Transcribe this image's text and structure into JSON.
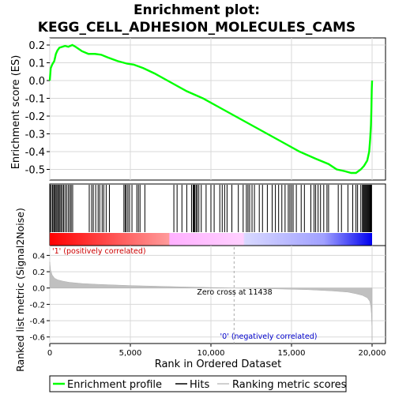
{
  "title_line1": "Enrichment plot:",
  "title_line2": "KEGG_CELL_ADHESION_MOLECULES_CAMS",
  "chart_data": [
    {
      "type": "line",
      "panel": "enrichment",
      "ylabel": "Enrichment score (ES)",
      "yticks": [
        "0.2",
        "0.1",
        "0.0",
        "-0.1",
        "-0.2",
        "-0.3",
        "-0.4",
        "-0.5"
      ],
      "ytick_values": [
        0.2,
        0.1,
        0.0,
        -0.1,
        -0.2,
        -0.3,
        -0.4,
        -0.5
      ],
      "ylim": [
        -0.56,
        0.24
      ],
      "xlim": [
        0,
        20000
      ],
      "grid": true,
      "series": [
        {
          "name": "Enrichment profile",
          "color": "#00ff00",
          "x": [
            0,
            60,
            150,
            280,
            380,
            480,
            600,
            780,
            950,
            1150,
            1400,
            1600,
            2000,
            2400,
            2800,
            3200,
            3600,
            4200,
            4800,
            5200,
            5800,
            6500,
            7500,
            8500,
            9500,
            10500,
            11500,
            12500,
            13500,
            14500,
            15500,
            16500,
            17300,
            17800,
            18300,
            18700,
            19000,
            19300,
            19500,
            19700,
            19820,
            19880,
            19930,
            19960,
            19980,
            20000
          ],
          "y": [
            0.0,
            0.07,
            0.09,
            0.11,
            0.15,
            0.17,
            0.185,
            0.19,
            0.195,
            0.19,
            0.2,
            0.19,
            0.165,
            0.15,
            0.15,
            0.145,
            0.13,
            0.11,
            0.095,
            0.09,
            0.07,
            0.04,
            -0.01,
            -0.06,
            -0.1,
            -0.15,
            -0.2,
            -0.25,
            -0.3,
            -0.35,
            -0.4,
            -0.44,
            -0.47,
            -0.5,
            -0.51,
            -0.52,
            -0.52,
            -0.5,
            -0.48,
            -0.45,
            -0.4,
            -0.33,
            -0.25,
            -0.15,
            -0.05,
            0.0
          ]
        }
      ]
    },
    {
      "type": "scatter",
      "panel": "hits",
      "series": [
        {
          "name": "Hits",
          "color": "#000000",
          "x": [
            20,
            90,
            170,
            240,
            300,
            350,
            430,
            490,
            560,
            630,
            700,
            780,
            860,
            950,
            1050,
            1150,
            1250,
            1330,
            1420,
            2450,
            2600,
            2700,
            2850,
            3000,
            3100,
            3250,
            3350,
            3500,
            3700,
            4600,
            4680,
            4750,
            4850,
            4950,
            5100,
            5400,
            5500,
            5600,
            5900,
            7700,
            7900,
            8200,
            8500,
            8800,
            8900,
            8950,
            9000,
            9080,
            9150,
            9250,
            9400,
            9700,
            10000,
            10200,
            10550,
            10700,
            10850,
            11000,
            11300,
            11700,
            12000,
            12200,
            12300,
            12400,
            12550,
            12700,
            13000,
            13200,
            13500,
            13800,
            14000,
            14200,
            14400,
            14600,
            14800,
            14900,
            15000,
            15100,
            15300,
            15600,
            15800,
            16200,
            16400,
            16500,
            16650,
            16800,
            17000,
            17200,
            17300,
            17900,
            18100,
            18500,
            18800,
            19000,
            19100,
            19300,
            19400,
            19450,
            19500,
            19550,
            19600,
            19650,
            19700,
            19750,
            19800,
            19850,
            19880,
            19910,
            19940,
            19970
          ]
        }
      ]
    },
    {
      "type": "area",
      "panel": "ranked metric",
      "xlabel": "Rank in Ordered Dataset",
      "ylabel": "Ranked list metric (Signal2Noise)",
      "yticks": [
        "0.4",
        "0.2",
        "0.0",
        "-0.2",
        "-0.4",
        "-0.6"
      ],
      "ytick_values": [
        0.4,
        0.2,
        0.0,
        -0.2,
        -0.4,
        -0.6
      ],
      "xticks": [
        "0",
        "5,000",
        "10,000",
        "15,000",
        "20,000"
      ],
      "xtick_values": [
        0,
        5000,
        10000,
        15000,
        20000
      ],
      "ylim": [
        -0.68,
        0.52
      ],
      "xlim": [
        0,
        20000
      ],
      "grid": true,
      "zero_cross": 11438,
      "zero_cross_label": "Zero cross at 11438",
      "pos_label": "'1' (positively correlated)",
      "neg_label": "'0' (negatively correlated)",
      "series": [
        {
          "name": "Ranking metric scores",
          "color": "#c0c0c0",
          "x": [
            0,
            50,
            150,
            300,
            500,
            800,
            1200,
            2000,
            3000,
            5000,
            8000,
            11438,
            14000,
            16000,
            17500,
            18500,
            19000,
            19400,
            19700,
            19850,
            19920,
            19960,
            19990,
            20000
          ],
          "y": [
            0.32,
            0.22,
            0.16,
            0.12,
            0.1,
            0.085,
            0.07,
            0.055,
            0.045,
            0.03,
            0.015,
            0.0,
            -0.01,
            -0.02,
            -0.035,
            -0.05,
            -0.07,
            -0.09,
            -0.12,
            -0.16,
            -0.22,
            -0.32,
            -0.48,
            -0.64
          ]
        }
      ]
    }
  ],
  "legend": {
    "items": [
      {
        "label": "Enrichment profile",
        "color": "#00ff00"
      },
      {
        "label": "Hits",
        "color": "#000000"
      },
      {
        "label": "Ranking metric scores",
        "color": "#c0c0c0"
      }
    ]
  }
}
